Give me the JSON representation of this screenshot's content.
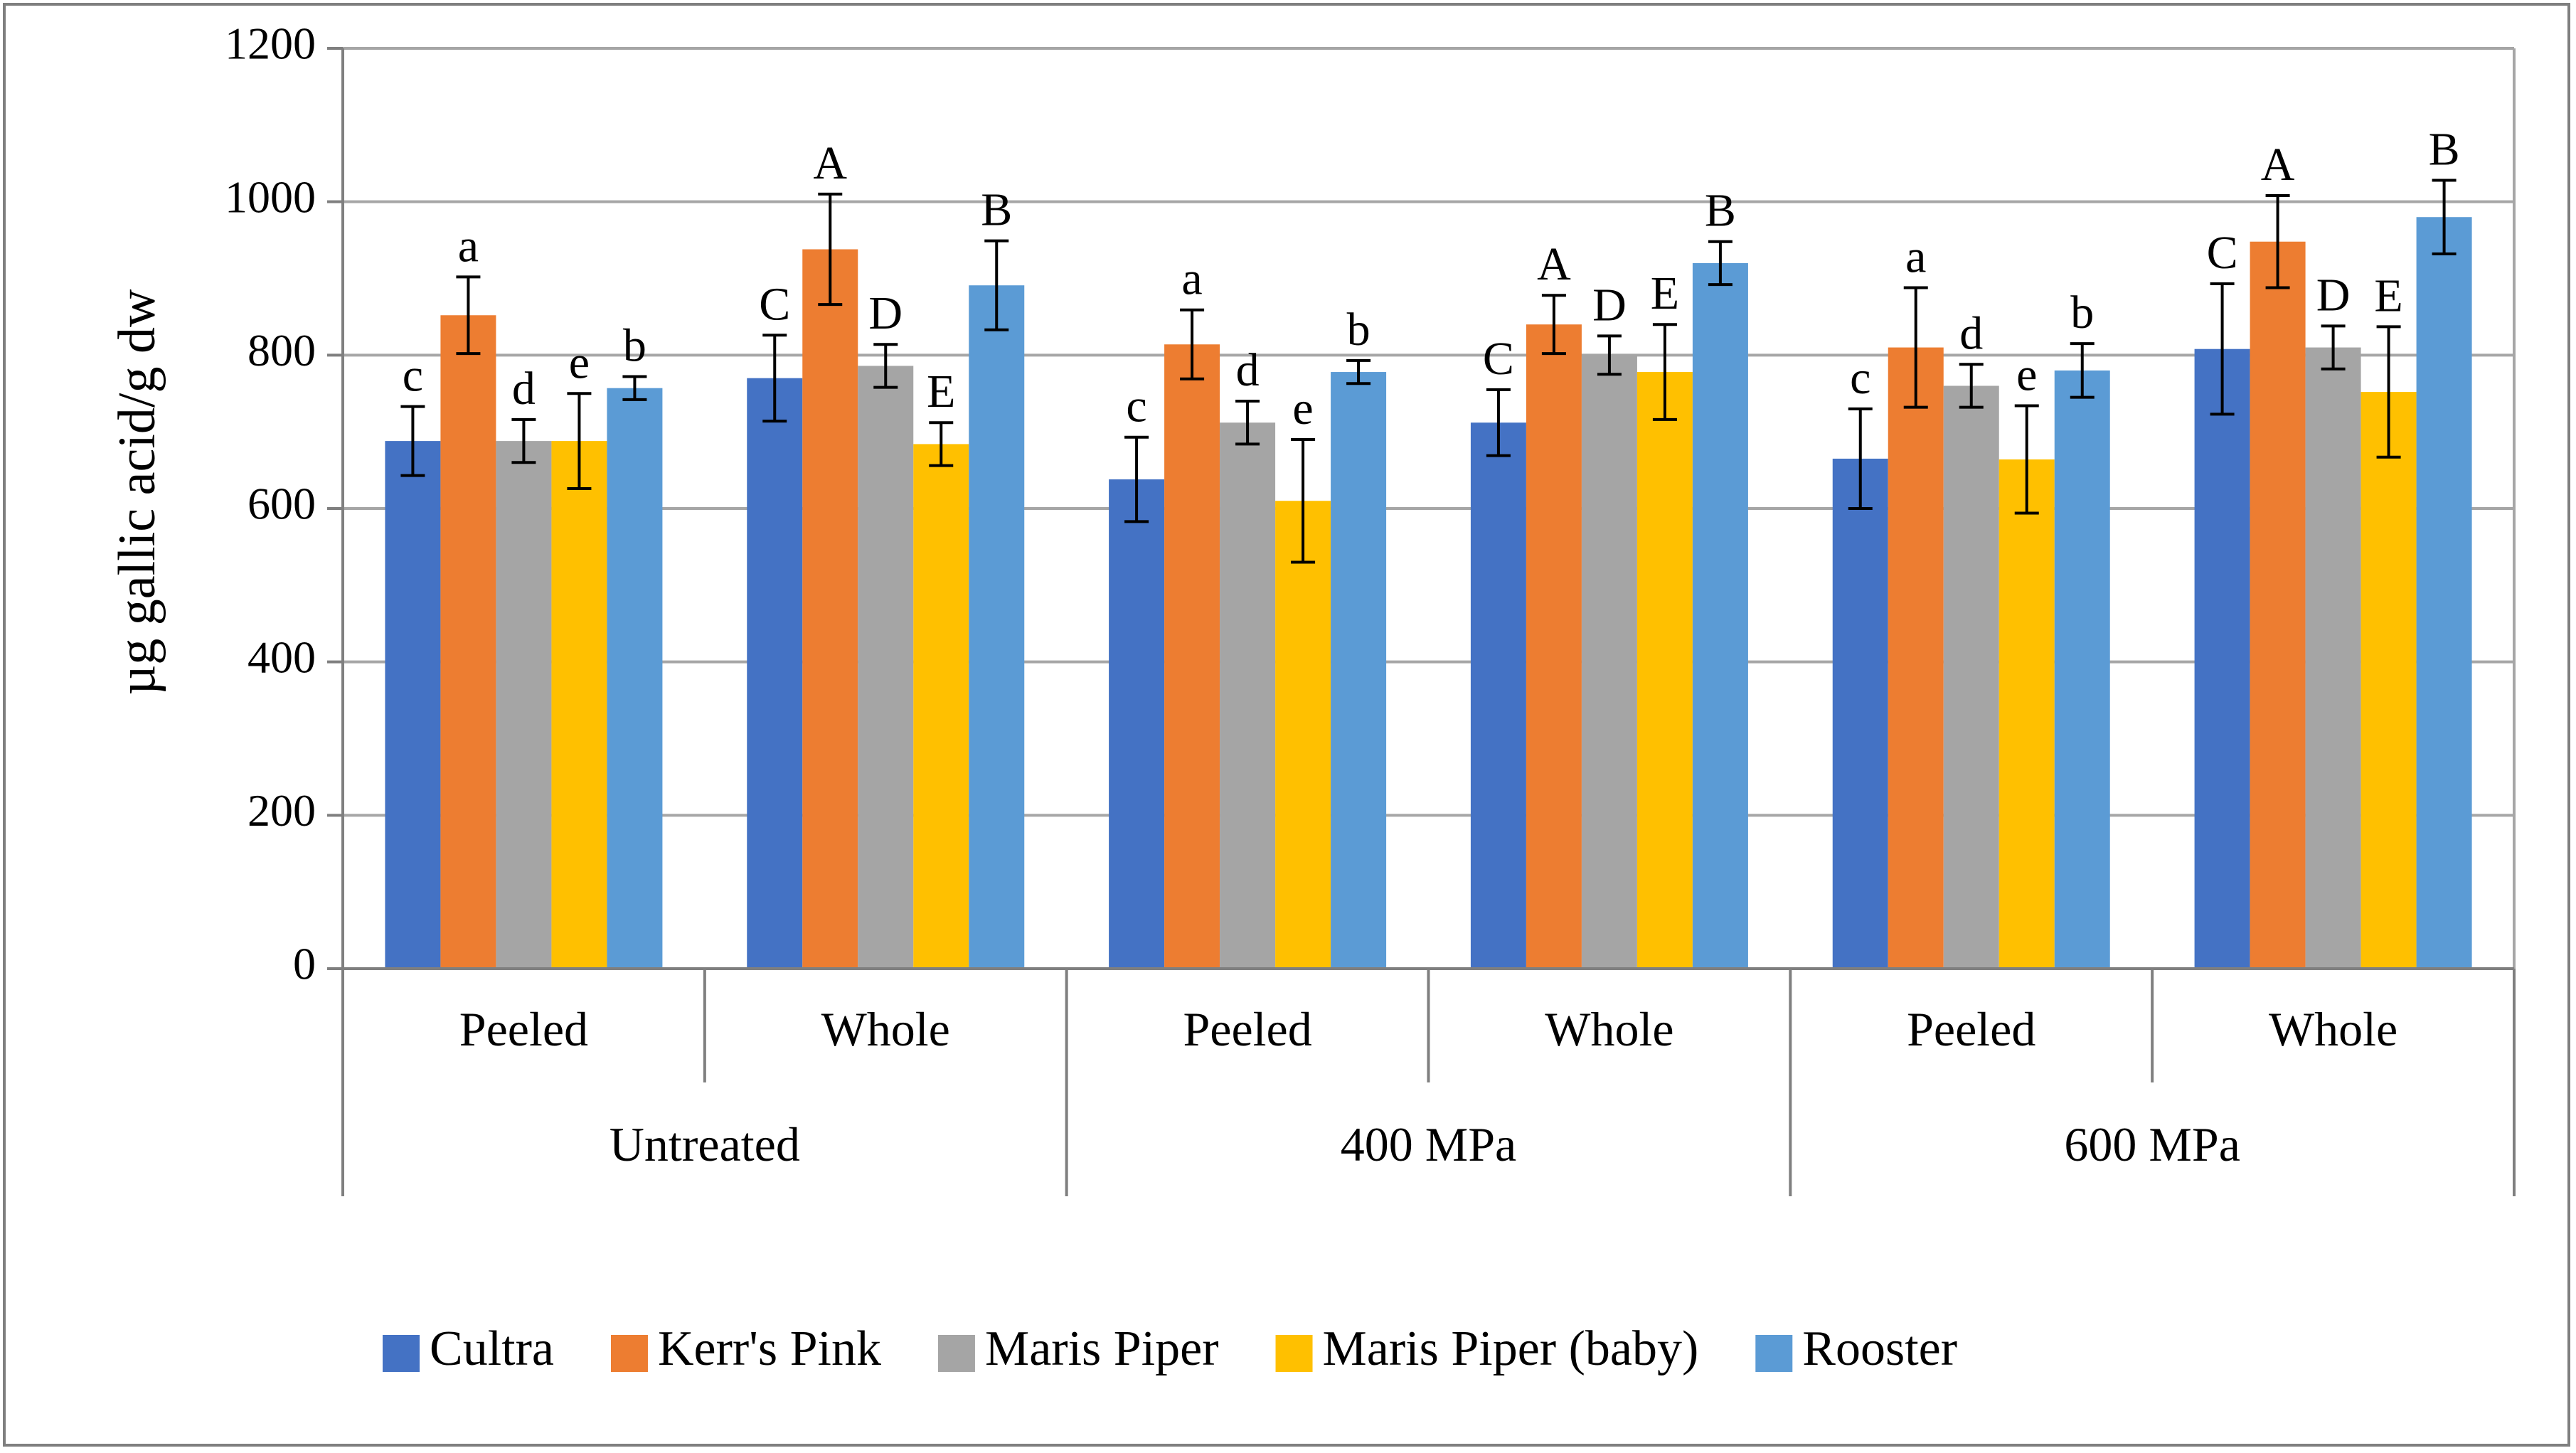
{
  "chart_data": {
    "type": "bar",
    "title": "",
    "xlabel": "",
    "ylabel": "µg gallic acid/g dw",
    "ylim": [
      0,
      1200
    ],
    "yticks": [
      0,
      200,
      400,
      600,
      800,
      1000,
      1200
    ],
    "grid": true,
    "legend_position": "bottom",
    "groups": [
      "Untreated",
      "400 MPa",
      "600 MPa"
    ],
    "categories": [
      "Peeled",
      "Whole",
      "Peeled",
      "Whole",
      "Peeled",
      "Whole"
    ],
    "category_group": [
      0,
      0,
      1,
      1,
      2,
      2
    ],
    "series": [
      {
        "name": "Cultra",
        "color": "#4472c4",
        "values": [
          688,
          770,
          638,
          712,
          665,
          808
        ],
        "errors": [
          45,
          56,
          55,
          43,
          65,
          85
        ],
        "labels": [
          "c",
          "C",
          "c",
          "C",
          "c",
          "C"
        ]
      },
      {
        "name": "Kerr's Pink",
        "color": "#ed7d31",
        "values": [
          852,
          938,
          814,
          840,
          810,
          948
        ],
        "errors": [
          50,
          72,
          45,
          38,
          78,
          60
        ],
        "labels": [
          "a",
          "A",
          "a",
          "A",
          "a",
          "A"
        ]
      },
      {
        "name": "Maris Piper",
        "color": "#a5a5a5",
        "values": [
          688,
          786,
          712,
          800,
          760,
          810
        ],
        "errors": [
          28,
          28,
          28,
          25,
          28,
          28
        ],
        "labels": [
          "d",
          "D",
          "d",
          "D",
          "d",
          "D"
        ]
      },
      {
        "name": "Maris Piper (baby)",
        "color": "#ffc000",
        "values": [
          688,
          684,
          610,
          778,
          664,
          752
        ],
        "errors": [
          62,
          28,
          80,
          62,
          70,
          85
        ],
        "labels": [
          "e",
          "E",
          "e",
          "E",
          "e",
          "E"
        ]
      },
      {
        "name": "Rooster",
        "color": "#5b9bd5",
        "values": [
          757,
          891,
          778,
          920,
          780,
          980
        ],
        "errors": [
          15,
          58,
          15,
          28,
          35,
          48
        ],
        "labels": [
          "b",
          "B",
          "b",
          "B",
          "b",
          "B"
        ]
      }
    ]
  }
}
